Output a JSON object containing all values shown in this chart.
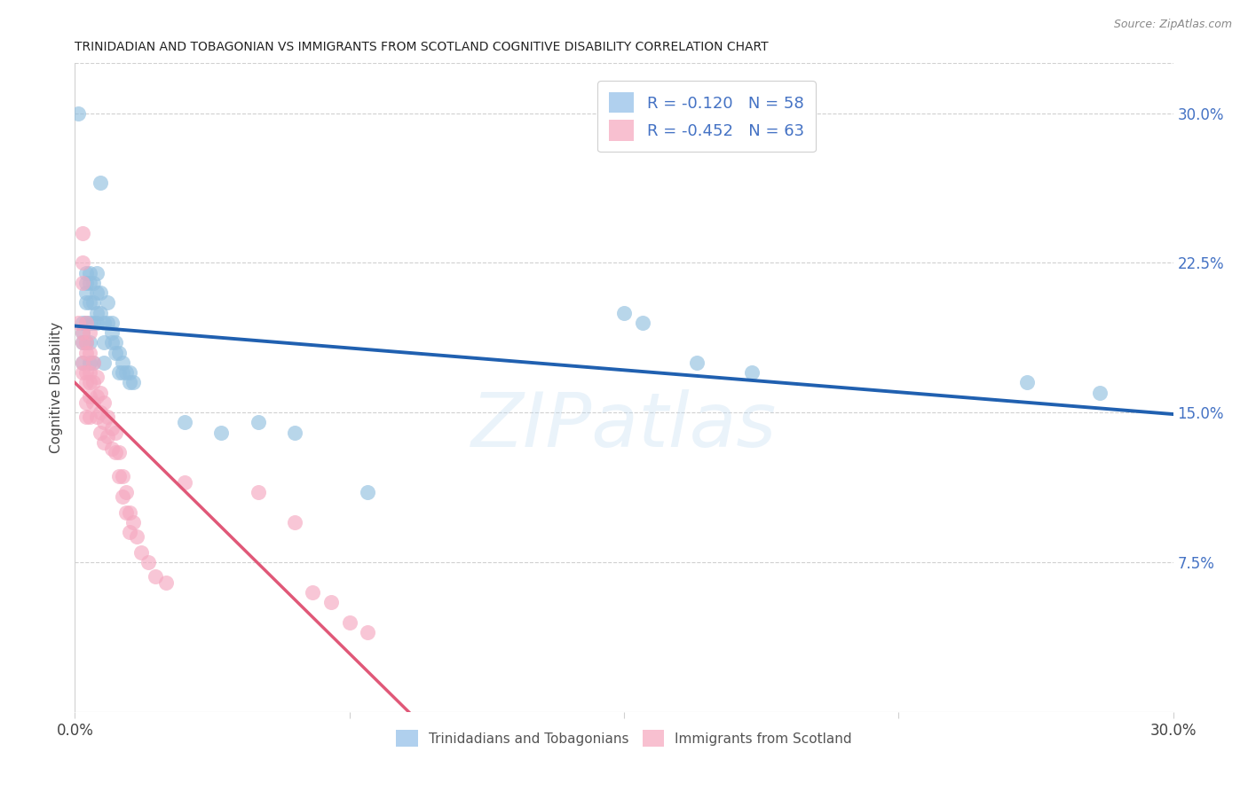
{
  "title": "TRINIDADIAN AND TOBAGONIAN VS IMMIGRANTS FROM SCOTLAND COGNITIVE DISABILITY CORRELATION CHART",
  "source": "Source: ZipAtlas.com",
  "ylabel": "Cognitive Disability",
  "xlim": [
    0.0,
    0.3
  ],
  "ylim": [
    0.0,
    0.325
  ],
  "blue_color": "#92c0e0",
  "pink_color": "#f5a8c0",
  "blue_line_color": "#2060b0",
  "pink_line_color": "#e05878",
  "blue_scatter": [
    [
      0.001,
      0.3
    ],
    [
      0.002,
      0.185
    ],
    [
      0.002,
      0.195
    ],
    [
      0.002,
      0.175
    ],
    [
      0.002,
      0.19
    ],
    [
      0.003,
      0.22
    ],
    [
      0.003,
      0.215
    ],
    [
      0.003,
      0.205
    ],
    [
      0.003,
      0.195
    ],
    [
      0.003,
      0.21
    ],
    [
      0.003,
      0.185
    ],
    [
      0.004,
      0.22
    ],
    [
      0.004,
      0.215
    ],
    [
      0.004,
      0.205
    ],
    [
      0.004,
      0.195
    ],
    [
      0.004,
      0.175
    ],
    [
      0.004,
      0.185
    ],
    [
      0.005,
      0.215
    ],
    [
      0.005,
      0.205
    ],
    [
      0.005,
      0.195
    ],
    [
      0.005,
      0.175
    ],
    [
      0.006,
      0.21
    ],
    [
      0.006,
      0.2
    ],
    [
      0.006,
      0.195
    ],
    [
      0.006,
      0.22
    ],
    [
      0.007,
      0.265
    ],
    [
      0.007,
      0.21
    ],
    [
      0.007,
      0.2
    ],
    [
      0.008,
      0.195
    ],
    [
      0.008,
      0.175
    ],
    [
      0.008,
      0.185
    ],
    [
      0.009,
      0.205
    ],
    [
      0.009,
      0.195
    ],
    [
      0.01,
      0.195
    ],
    [
      0.01,
      0.19
    ],
    [
      0.01,
      0.185
    ],
    [
      0.011,
      0.185
    ],
    [
      0.011,
      0.18
    ],
    [
      0.012,
      0.18
    ],
    [
      0.012,
      0.17
    ],
    [
      0.013,
      0.175
    ],
    [
      0.013,
      0.17
    ],
    [
      0.014,
      0.17
    ],
    [
      0.015,
      0.17
    ],
    [
      0.015,
      0.165
    ],
    [
      0.016,
      0.165
    ],
    [
      0.03,
      0.145
    ],
    [
      0.04,
      0.14
    ],
    [
      0.05,
      0.145
    ],
    [
      0.06,
      0.14
    ],
    [
      0.08,
      0.11
    ],
    [
      0.15,
      0.2
    ],
    [
      0.155,
      0.195
    ],
    [
      0.17,
      0.175
    ],
    [
      0.185,
      0.17
    ],
    [
      0.26,
      0.165
    ],
    [
      0.28,
      0.16
    ]
  ],
  "pink_scatter": [
    [
      0.001,
      0.195
    ],
    [
      0.002,
      0.24
    ],
    [
      0.002,
      0.225
    ],
    [
      0.002,
      0.215
    ],
    [
      0.002,
      0.19
    ],
    [
      0.002,
      0.185
    ],
    [
      0.002,
      0.175
    ],
    [
      0.002,
      0.17
    ],
    [
      0.003,
      0.195
    ],
    [
      0.003,
      0.185
    ],
    [
      0.003,
      0.18
    ],
    [
      0.003,
      0.17
    ],
    [
      0.003,
      0.165
    ],
    [
      0.003,
      0.155
    ],
    [
      0.003,
      0.148
    ],
    [
      0.004,
      0.19
    ],
    [
      0.004,
      0.18
    ],
    [
      0.004,
      0.17
    ],
    [
      0.004,
      0.165
    ],
    [
      0.004,
      0.158
    ],
    [
      0.004,
      0.148
    ],
    [
      0.005,
      0.175
    ],
    [
      0.005,
      0.165
    ],
    [
      0.005,
      0.155
    ],
    [
      0.006,
      0.168
    ],
    [
      0.006,
      0.158
    ],
    [
      0.006,
      0.148
    ],
    [
      0.007,
      0.16
    ],
    [
      0.007,
      0.15
    ],
    [
      0.007,
      0.14
    ],
    [
      0.008,
      0.155
    ],
    [
      0.008,
      0.145
    ],
    [
      0.008,
      0.135
    ],
    [
      0.009,
      0.148
    ],
    [
      0.009,
      0.138
    ],
    [
      0.01,
      0.142
    ],
    [
      0.01,
      0.132
    ],
    [
      0.011,
      0.14
    ],
    [
      0.011,
      0.13
    ],
    [
      0.012,
      0.13
    ],
    [
      0.012,
      0.118
    ],
    [
      0.013,
      0.118
    ],
    [
      0.013,
      0.108
    ],
    [
      0.014,
      0.11
    ],
    [
      0.014,
      0.1
    ],
    [
      0.015,
      0.1
    ],
    [
      0.015,
      0.09
    ],
    [
      0.016,
      0.095
    ],
    [
      0.017,
      0.088
    ],
    [
      0.018,
      0.08
    ],
    [
      0.02,
      0.075
    ],
    [
      0.022,
      0.068
    ],
    [
      0.025,
      0.065
    ],
    [
      0.03,
      0.115
    ],
    [
      0.05,
      0.11
    ],
    [
      0.06,
      0.095
    ],
    [
      0.065,
      0.06
    ],
    [
      0.07,
      0.055
    ],
    [
      0.075,
      0.045
    ],
    [
      0.08,
      0.04
    ]
  ],
  "blue_R": -0.12,
  "blue_N": 58,
  "pink_R": -0.452,
  "pink_N": 63,
  "watermark": "ZIPatlas",
  "background_color": "#ffffff",
  "grid_color": "#d0d0d0",
  "yticks": [
    0.075,
    0.15,
    0.225,
    0.3
  ],
  "ytick_labels_right": [
    "7.5%",
    "15.0%",
    "22.5%",
    "30.0%"
  ],
  "xticks": [
    0.0,
    0.3
  ],
  "xtick_labels": [
    "0.0%",
    "30.0%"
  ],
  "legend1_label": "R = -0.120   N = 58",
  "legend2_label": "R = -0.452   N = 63",
  "bottom_legend1": "Trinidadians and Tobagonians",
  "bottom_legend2": "Immigrants from Scotland"
}
